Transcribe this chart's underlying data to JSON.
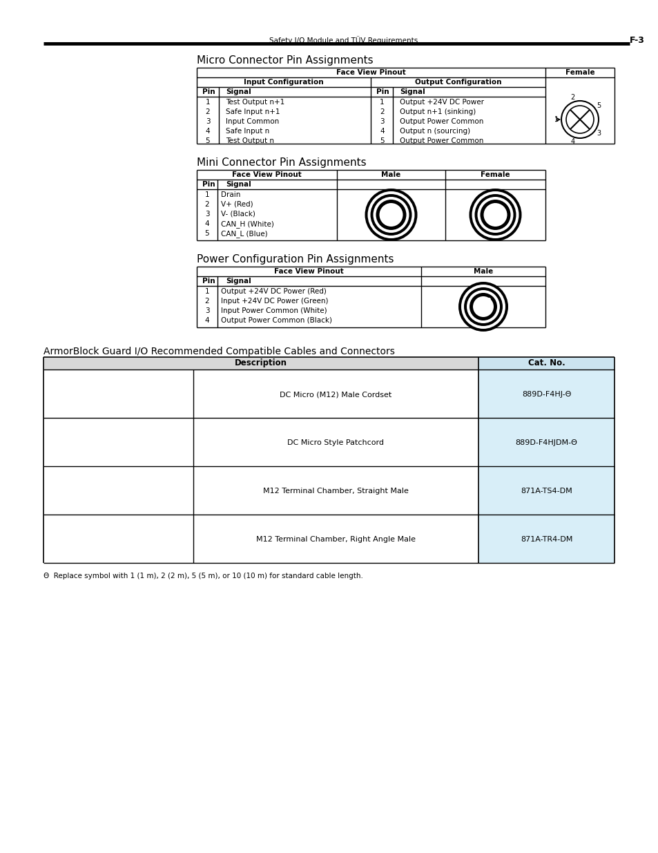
{
  "page_header_left": "Safety I/O Module and TÜV Requirements",
  "page_header_right": "F-3",
  "bg_color": "#ffffff",
  "section1_title": "Micro Connector Pin Assignments",
  "section2_title": "Mini Connector Pin Assignments",
  "section3_title": "Power Configuration Pin Assignments",
  "section4_title": "ArmorBlock Guard I/O Recommended Compatible Cables and Connectors",
  "micro_table": {
    "rows": [
      [
        "1",
        "Test Output n+1",
        "1",
        "Output +24V DC Power"
      ],
      [
        "2",
        "Safe Input n+1",
        "2",
        "Output n+1 (sinking)"
      ],
      [
        "3",
        "Input Common",
        "3",
        "Output Power Common"
      ],
      [
        "4",
        "Safe Input n",
        "4",
        "Output n (sourcing)"
      ],
      [
        "5",
        "Test Output n",
        "5",
        "Output Power Common"
      ]
    ]
  },
  "mini_table": {
    "rows": [
      [
        "1",
        "Drain"
      ],
      [
        "2",
        "V+ (Red)"
      ],
      [
        "3",
        "V- (Black)"
      ],
      [
        "4",
        "CAN_H (White)"
      ],
      [
        "5",
        "CAN_L (Blue)"
      ]
    ]
  },
  "power_table": {
    "rows": [
      [
        "1",
        "Output +24V DC Power (Red)"
      ],
      [
        "2",
        "Input +24V DC Power (Green)"
      ],
      [
        "3",
        "Input Power Common (White)"
      ],
      [
        "4",
        "Output Power Common (Black)"
      ]
    ]
  },
  "cables_table": {
    "headers": [
      "Description",
      "Cat. No."
    ],
    "rows": [
      [
        "DC Micro (M12) Male Cordset",
        "889D-F4HJ-Θ"
      ],
      [
        "DC Micro Style Patchcord",
        "889D-F4HJDM-Θ"
      ],
      [
        "M12 Terminal Chamber, Straight Male",
        "871A-TS4-DM"
      ],
      [
        "M12 Terminal Chamber, Right Angle Male",
        "871A-TR4-DM"
      ]
    ]
  },
  "footnote": "Θ  Replace symbol with 1 (1 m), 2 (2 m), 5 (5 m), or 10 (10 m) for standard cable length."
}
